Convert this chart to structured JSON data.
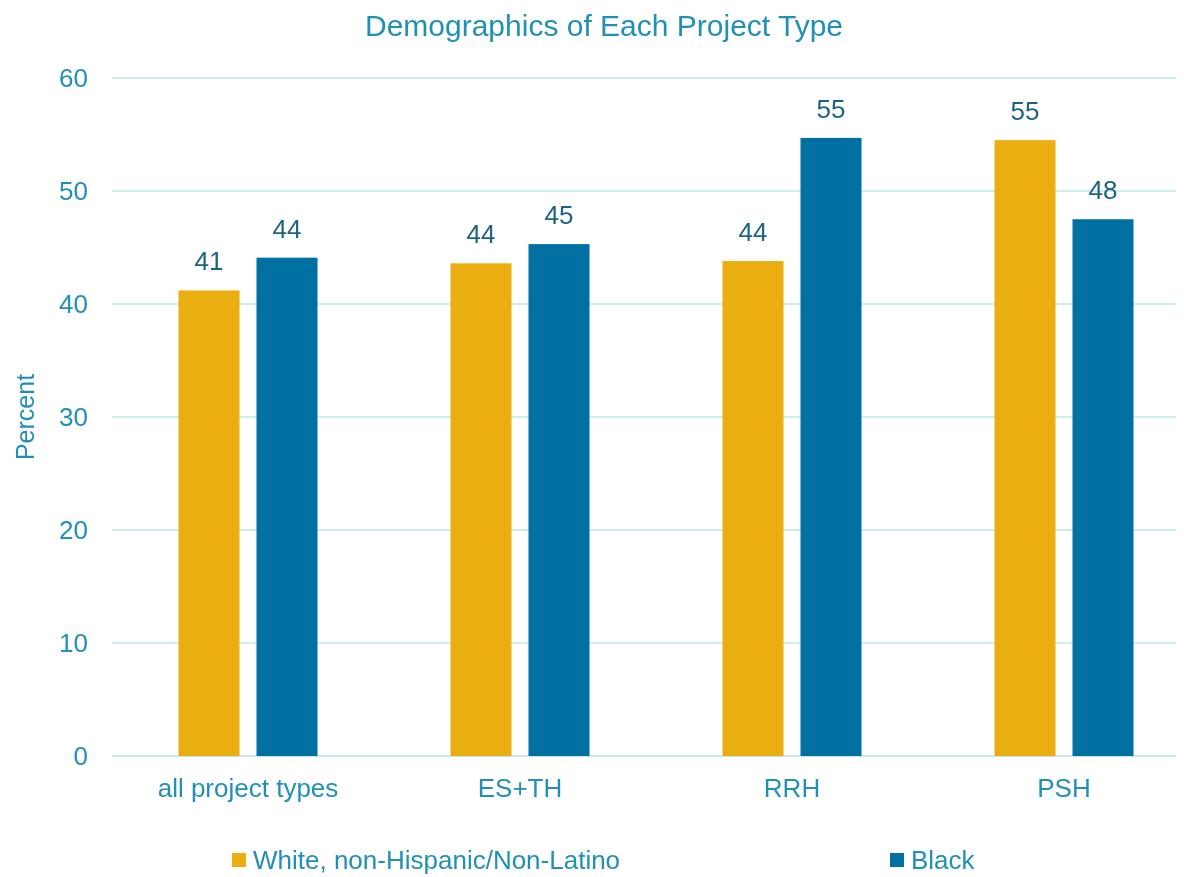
{
  "chart_data": {
    "type": "bar",
    "title": "Demographics of Each Project Type",
    "ylabel": "Percent",
    "categories": [
      "all project types",
      "ES+TH",
      "RRH",
      "PSH"
    ],
    "series": [
      {
        "name": "White, non-Hispanic/Non-Latino",
        "color": "#ebae10",
        "values": [
          41.2,
          43.6,
          43.8,
          54.5
        ],
        "value_labels": [
          "41",
          "44",
          "44",
          "55"
        ]
      },
      {
        "name": "Black",
        "color": "#0070a3",
        "values": [
          44.1,
          45.3,
          54.7,
          47.5
        ],
        "value_labels": [
          "44",
          "45",
          "55",
          "48"
        ]
      }
    ],
    "ylim": [
      0,
      60
    ],
    "yticks": [
      0,
      10,
      20,
      30,
      40,
      50,
      60
    ],
    "grid": "y",
    "legend": "bottom"
  }
}
